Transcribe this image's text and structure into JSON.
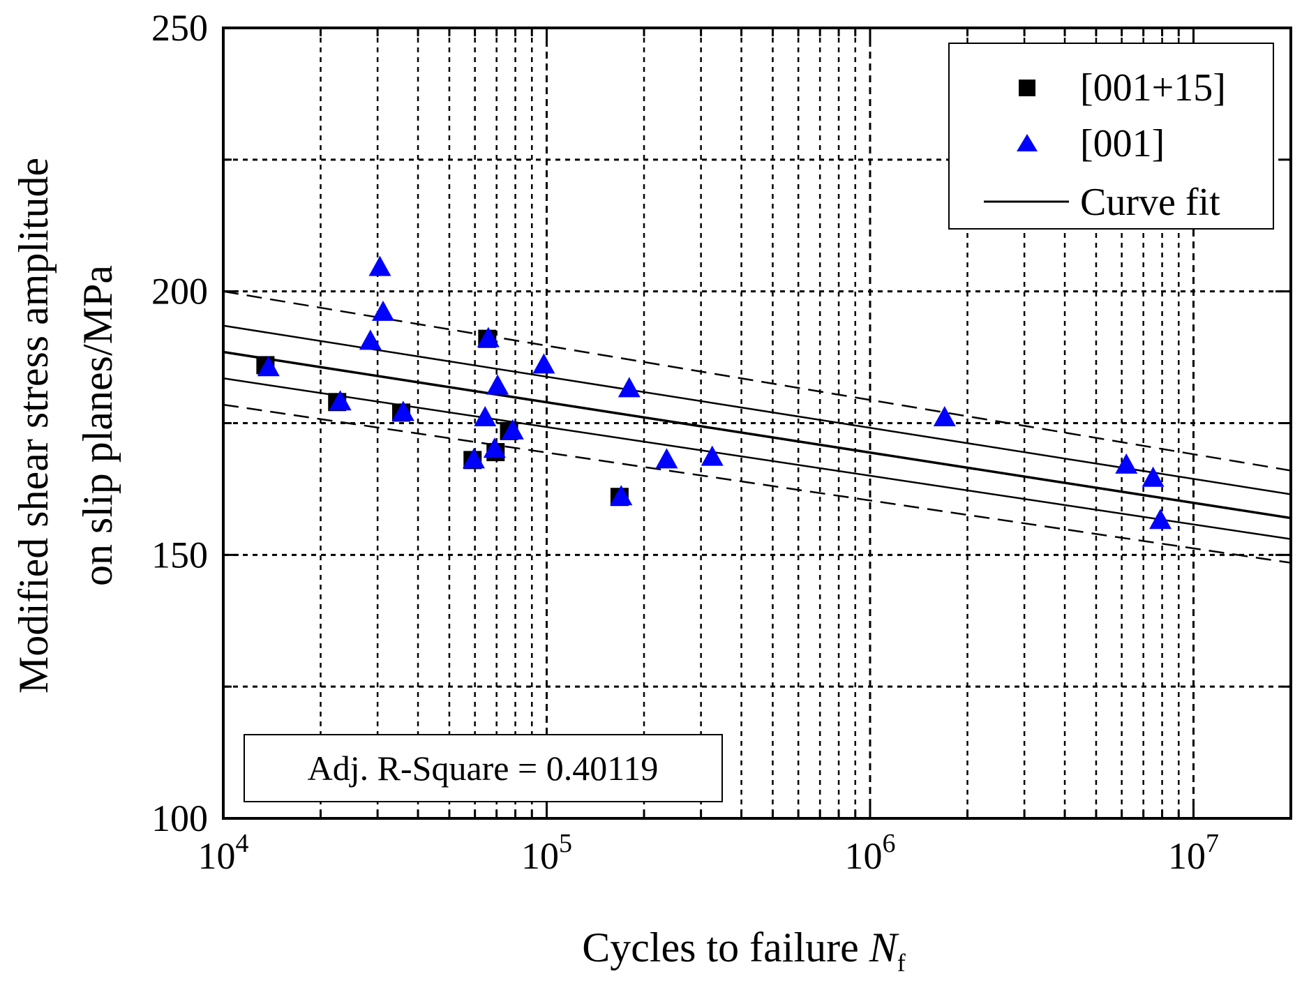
{
  "chart_data": {
    "type": "scatter",
    "title": "",
    "xlabel": "Cycles to failure",
    "xlabel_symbol": "N",
    "xlabel_subscript": "f",
    "ylabel_line1": "Modified shear stress amplitude",
    "ylabel_line2": "on slip planes/MPa",
    "xscale": "log",
    "xlim": [
      10000,
      20000000
    ],
    "ylim": [
      100,
      250
    ],
    "xticks": [
      {
        "value": 10000,
        "base": "10",
        "exp": "4"
      },
      {
        "value": 100000,
        "base": "10",
        "exp": "5"
      },
      {
        "value": 1000000,
        "base": "10",
        "exp": "6"
      },
      {
        "value": 10000000,
        "base": "10",
        "exp": "7"
      }
    ],
    "yticks": [
      {
        "value": 100,
        "label": "100"
      },
      {
        "value": 150,
        "label": "150"
      },
      {
        "value": 200,
        "label": "200"
      },
      {
        "value": 250,
        "label": "250"
      }
    ],
    "y_minor_gridlines": [
      125,
      175,
      225
    ],
    "grid": true,
    "legend_position": "top-right",
    "legend": [
      {
        "label": "[001+15]",
        "marker": "square",
        "color": "#000000"
      },
      {
        "label": "[001]",
        "marker": "triangle",
        "color": "#0000ff"
      },
      {
        "label": "Curve fit",
        "marker": "line",
        "color": "#000000"
      }
    ],
    "series": [
      {
        "name": "[001+15]",
        "marker": "square",
        "color": "#000000",
        "x": [
          13500,
          22500,
          35500,
          59000,
          65500,
          69500,
          76500,
          168000
        ],
        "y": [
          186,
          179,
          177,
          168,
          191,
          169.5,
          173.5,
          161
        ]
      },
      {
        "name": "[001]",
        "marker": "triangle",
        "color": "#0000ff",
        "x": [
          13800,
          23000,
          28500,
          30500,
          31200,
          36000,
          59500,
          64500,
          66000,
          69000,
          70500,
          78500,
          98000,
          170000,
          180000,
          235000,
          325000,
          1700000,
          6200000,
          7500000,
          7900000
        ],
        "y": [
          185.5,
          179,
          190.5,
          204.5,
          196,
          177,
          168,
          176,
          191,
          170,
          182,
          173.5,
          186,
          161,
          181.5,
          168,
          168.5,
          176,
          167,
          164.5,
          156.5
        ]
      }
    ],
    "fit_lines": [
      {
        "name": "Curve fit",
        "style": "solid",
        "x": [
          10000,
          20000000
        ],
        "y": [
          188.5,
          157
        ]
      },
      {
        "name": "Confidence band upper",
        "style": "solid",
        "x": [
          10000,
          20000000
        ],
        "y": [
          193.5,
          161.5
        ]
      },
      {
        "name": "Confidence band lower",
        "style": "solid",
        "x": [
          10000,
          20000000
        ],
        "y": [
          183.5,
          153
        ]
      },
      {
        "name": "Prediction band upper",
        "style": "dashed",
        "x": [
          10000,
          20000000
        ],
        "y": [
          200,
          166
        ]
      },
      {
        "name": "Prediction band lower",
        "style": "dashed",
        "x": [
          10000,
          20000000
        ],
        "y": [
          178.5,
          148.5
        ]
      }
    ],
    "annotation": "Adj. R-Square = 0.40119"
  }
}
